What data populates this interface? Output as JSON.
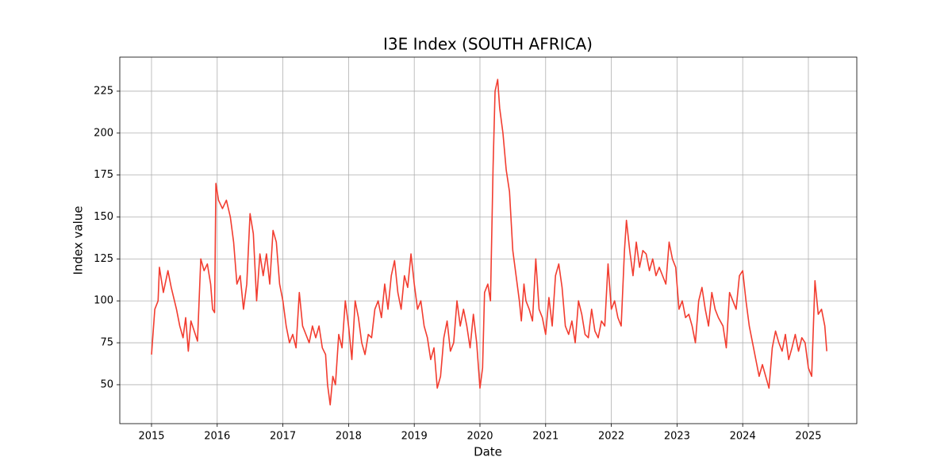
{
  "chart_data": {
    "type": "line",
    "title": "I3E Index (SOUTH AFRICA)",
    "x_label": "Date",
    "y_label": "Index value",
    "color": "#f23d30",
    "grid": true,
    "xlim": [
      2014.517,
      2025.737
    ],
    "ylim": [
      26.8,
      245.3
    ],
    "xticks": [
      2015,
      2016,
      2017,
      2018,
      2019,
      2020,
      2021,
      2022,
      2023,
      2024,
      2025
    ],
    "yticks": [
      50,
      75,
      100,
      125,
      150,
      175,
      200,
      225
    ],
    "x": [
      2015.0,
      2015.05,
      2015.1,
      2015.12,
      2015.18,
      2015.25,
      2015.3,
      2015.38,
      2015.43,
      2015.48,
      2015.52,
      2015.56,
      2015.6,
      2015.65,
      2015.7,
      2015.75,
      2015.8,
      2015.85,
      2015.9,
      2015.93,
      2015.96,
      2015.98,
      2016.02,
      2016.08,
      2016.14,
      2016.2,
      2016.25,
      2016.3,
      2016.35,
      2016.4,
      2016.45,
      2016.5,
      2016.55,
      2016.6,
      2016.65,
      2016.7,
      2016.75,
      2016.8,
      2016.85,
      2016.9,
      2016.95,
      2017.0,
      2017.05,
      2017.1,
      2017.15,
      2017.2,
      2017.25,
      2017.3,
      2017.35,
      2017.4,
      2017.45,
      2017.5,
      2017.55,
      2017.6,
      2017.65,
      2017.68,
      2017.72,
      2017.76,
      2017.8,
      2017.85,
      2017.9,
      2017.95,
      2018.0,
      2018.05,
      2018.1,
      2018.15,
      2018.2,
      2018.25,
      2018.3,
      2018.35,
      2018.4,
      2018.45,
      2018.5,
      2018.55,
      2018.6,
      2018.65,
      2018.7,
      2018.75,
      2018.8,
      2018.85,
      2018.9,
      2018.95,
      2019.0,
      2019.05,
      2019.1,
      2019.15,
      2019.2,
      2019.25,
      2019.3,
      2019.35,
      2019.4,
      2019.45,
      2019.5,
      2019.55,
      2019.6,
      2019.65,
      2019.7,
      2019.75,
      2019.8,
      2019.85,
      2019.9,
      2019.95,
      2020.0,
      2020.04,
      2020.07,
      2020.12,
      2020.16,
      2020.2,
      2020.23,
      2020.27,
      2020.3,
      2020.35,
      2020.4,
      2020.45,
      2020.5,
      2020.55,
      2020.6,
      2020.63,
      2020.67,
      2020.7,
      2020.75,
      2020.8,
      2020.85,
      2020.9,
      2020.95,
      2021.0,
      2021.05,
      2021.1,
      2021.15,
      2021.2,
      2021.25,
      2021.3,
      2021.35,
      2021.4,
      2021.45,
      2021.5,
      2021.55,
      2021.6,
      2021.65,
      2021.7,
      2021.75,
      2021.8,
      2021.85,
      2021.9,
      2021.95,
      2022.0,
      2022.05,
      2022.1,
      2022.15,
      2022.2,
      2022.23,
      2022.28,
      2022.33,
      2022.38,
      2022.43,
      2022.48,
      2022.53,
      2022.58,
      2022.63,
      2022.68,
      2022.73,
      2022.78,
      2022.83,
      2022.88,
      2022.93,
      2022.98,
      2023.03,
      2023.08,
      2023.13,
      2023.18,
      2023.23,
      2023.28,
      2023.33,
      2023.38,
      2023.43,
      2023.48,
      2023.53,
      2023.58,
      2023.63,
      2023.7,
      2023.75,
      2023.8,
      2023.85,
      2023.9,
      2023.95,
      2024.0,
      2024.05,
      2024.1,
      2024.15,
      2024.2,
      2024.25,
      2024.3,
      2024.35,
      2024.4,
      2024.45,
      2024.5,
      2024.55,
      2024.6,
      2024.65,
      2024.7,
      2024.75,
      2024.8,
      2024.85,
      2024.9,
      2024.95,
      2025.0,
      2025.05,
      2025.1,
      2025.15,
      2025.2,
      2025.25,
      2025.28
    ],
    "values": [
      68,
      95,
      100,
      120,
      105,
      118,
      108,
      95,
      85,
      78,
      90,
      70,
      88,
      82,
      76,
      125,
      118,
      122,
      110,
      95,
      93,
      170,
      160,
      155,
      160,
      150,
      135,
      110,
      115,
      95,
      110,
      152,
      140,
      100,
      128,
      115,
      128,
      110,
      142,
      135,
      110,
      100,
      85,
      75,
      80,
      72,
      105,
      85,
      80,
      75,
      85,
      78,
      85,
      72,
      68,
      50,
      38,
      55,
      50,
      80,
      72,
      100,
      85,
      65,
      100,
      90,
      75,
      68,
      80,
      78,
      95,
      100,
      90,
      110,
      95,
      115,
      124,
      105,
      95,
      115,
      108,
      128,
      110,
      95,
      100,
      85,
      78,
      65,
      72,
      48,
      55,
      78,
      88,
      70,
      75,
      100,
      85,
      95,
      85,
      72,
      92,
      75,
      48,
      60,
      105,
      110,
      100,
      180,
      225,
      232,
      215,
      200,
      178,
      165,
      130,
      115,
      100,
      88,
      110,
      100,
      95,
      88,
      125,
      95,
      90,
      80,
      102,
      85,
      115,
      122,
      108,
      85,
      80,
      88,
      75,
      100,
      92,
      80,
      78,
      95,
      82,
      78,
      88,
      85,
      122,
      95,
      100,
      90,
      85,
      130,
      148,
      130,
      115,
      135,
      120,
      130,
      128,
      118,
      125,
      115,
      120,
      115,
      110,
      135,
      125,
      120,
      95,
      100,
      90,
      92,
      85,
      75,
      100,
      108,
      95,
      85,
      105,
      95,
      90,
      85,
      72,
      105,
      100,
      95,
      115,
      118,
      100,
      85,
      75,
      65,
      55,
      62,
      55,
      48,
      72,
      82,
      75,
      70,
      80,
      65,
      72,
      80,
      70,
      78,
      75,
      60,
      55,
      112,
      92,
      95,
      85,
      70
    ]
  }
}
